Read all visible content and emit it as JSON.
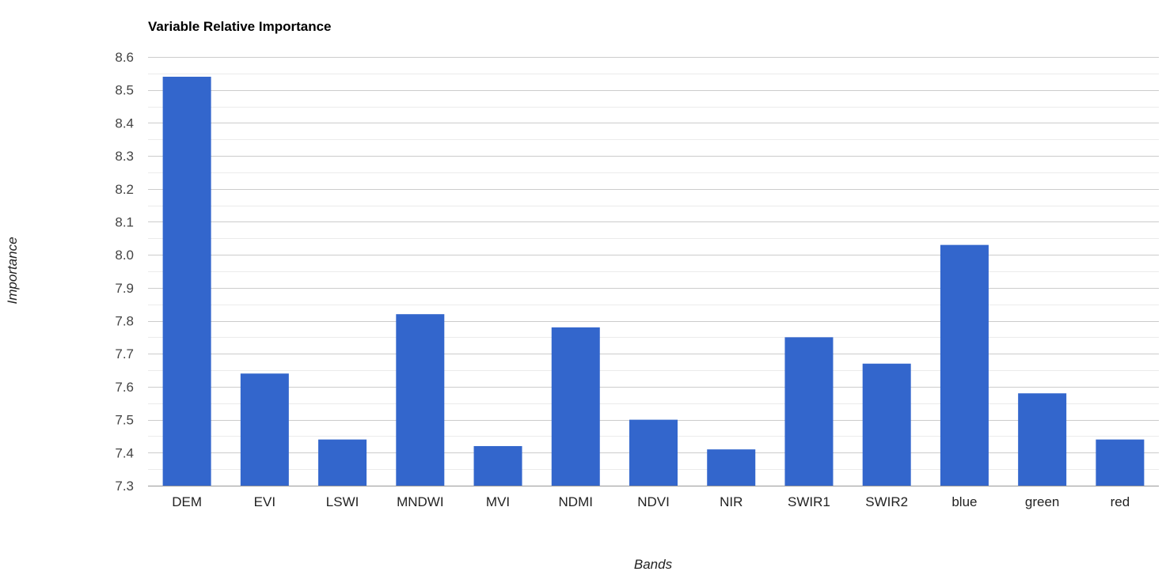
{
  "chart_data": {
    "type": "bar",
    "title": "Variable Relative Importance",
    "xlabel": "Bands",
    "ylabel": "Importance",
    "categories": [
      "DEM",
      "EVI",
      "LSWI",
      "MNDWI",
      "MVI",
      "NDMI",
      "NDVI",
      "NIR",
      "SWIR1",
      "SWIR2",
      "blue",
      "green",
      "red"
    ],
    "values": [
      8.54,
      7.64,
      7.44,
      7.82,
      7.42,
      7.78,
      7.5,
      7.41,
      7.75,
      7.67,
      8.03,
      7.58,
      7.44
    ],
    "ylim": [
      7.3,
      8.6
    ],
    "yticks": [
      "7.3",
      "7.4",
      "7.5",
      "7.6",
      "7.7",
      "7.8",
      "7.9",
      "8.0",
      "8.1",
      "8.2",
      "8.3",
      "8.4",
      "8.5",
      "8.6"
    ],
    "grid": true,
    "bar_color": "#3366cc"
  }
}
